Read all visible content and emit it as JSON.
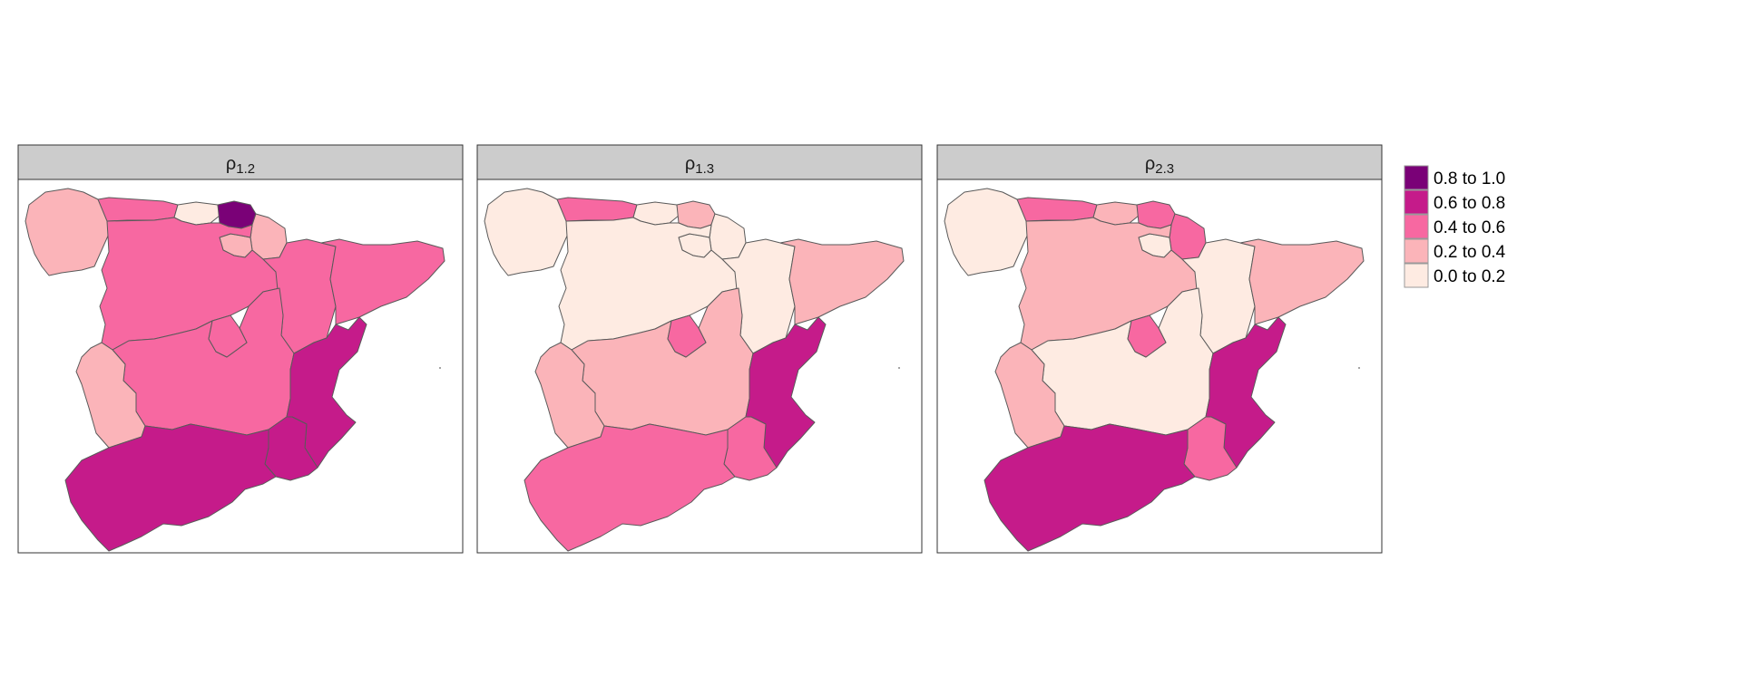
{
  "colors": {
    "0.8 to 1.0": "#7a0177",
    "0.6 to 0.8": "#c51b8a",
    "0.4 to 0.6": "#f768a1",
    "0.2 to 0.4": "#fbb4b9",
    "0.0 to 0.2": "#feebe2",
    "strip": "#cccccc",
    "border": "#5a5a5a"
  },
  "legend": {
    "items": [
      {
        "label": "0.8 to 1.0",
        "color": "#7a0177"
      },
      {
        "label": "0.6 to 0.8",
        "color": "#c51b8a"
      },
      {
        "label": "0.4 to 0.6",
        "color": "#f768a1"
      },
      {
        "label": "0.2 to 0.4",
        "color": "#fbb4b9"
      },
      {
        "label": "0.0 to 0.2",
        "color": "#feebe2"
      }
    ]
  },
  "panels": [
    {
      "symbol": "ρ",
      "subscript": "1.2",
      "regions": {
        "galicia": "0.2 to 0.4",
        "asturias": "0.4 to 0.6",
        "cantabria": "0.0 to 0.2",
        "basque": "0.8 to 1.0",
        "navarra": "0.2 to 0.4",
        "larioja": "0.2 to 0.4",
        "aragon": "0.4 to 0.6",
        "catalonia": "0.4 to 0.6",
        "castilla_leon": "0.4 to 0.6",
        "madrid": "0.4 to 0.6",
        "castilla_mancha": "0.4 to 0.6",
        "valencia": "0.6 to 0.8",
        "extremadura": "0.2 to 0.4",
        "murcia": "0.6 to 0.8",
        "andalusia": "0.6 to 0.8"
      }
    },
    {
      "symbol": "ρ",
      "subscript": "1.3",
      "regions": {
        "galicia": "0.0 to 0.2",
        "asturias": "0.4 to 0.6",
        "cantabria": "0.0 to 0.2",
        "basque": "0.2 to 0.4",
        "navarra": "0.0 to 0.2",
        "larioja": "0.0 to 0.2",
        "aragon": "0.0 to 0.2",
        "catalonia": "0.2 to 0.4",
        "castilla_leon": "0.0 to 0.2",
        "madrid": "0.4 to 0.6",
        "castilla_mancha": "0.2 to 0.4",
        "valencia": "0.6 to 0.8",
        "extremadura": "0.2 to 0.4",
        "murcia": "0.4 to 0.6",
        "andalusia": "0.4 to 0.6"
      }
    },
    {
      "symbol": "ρ",
      "subscript": "2.3",
      "regions": {
        "galicia": "0.0 to 0.2",
        "asturias": "0.4 to 0.6",
        "cantabria": "0.2 to 0.4",
        "basque": "0.4 to 0.6",
        "navarra": "0.4 to 0.6",
        "larioja": "0.0 to 0.2",
        "aragon": "0.0 to 0.2",
        "catalonia": "0.2 to 0.4",
        "castilla_leon": "0.2 to 0.4",
        "madrid": "0.4 to 0.6",
        "castilla_mancha": "0.0 to 0.2",
        "valencia": "0.6 to 0.8",
        "extremadura": "0.2 to 0.4",
        "murcia": "0.4 to 0.6",
        "andalusia": "0.6 to 0.8"
      }
    }
  ]
}
